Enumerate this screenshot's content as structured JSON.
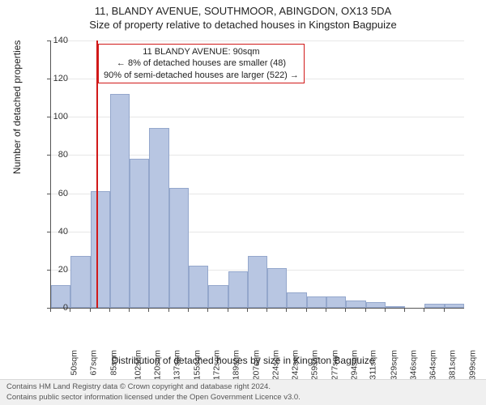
{
  "title_line1": "11, BLANDY AVENUE, SOUTHMOOR, ABINGDON, OX13 5DA",
  "title_line2": "Size of property relative to detached houses in Kingston Bagpuize",
  "xlabel": "Distribution of detached houses by size in Kingston Bagpuize",
  "ylabel": "Number of detached properties",
  "footer_line1": "Contains HM Land Registry data © Crown copyright and database right 2024.",
  "footer_line2": "Contains public sector information licensed under the Open Government Licence v3.0.",
  "annotation": {
    "line1": "11 BLANDY AVENUE: 90sqm",
    "line2": "← 8% of detached houses are smaller (48)",
    "line3": "90% of semi-detached houses are larger (522) →"
  },
  "chart": {
    "type": "histogram",
    "background_color": "#ffffff",
    "grid_color": "#e7e7e7",
    "axis_color": "#555555",
    "bar_fill": "#b8c6e2",
    "bar_border": "#94a7cc",
    "refline_color": "#d11919",
    "refline_x": 90,
    "ylim": [
      0,
      140
    ],
    "ytick_step": 20,
    "x_start": 50,
    "x_step": 17.5,
    "x_count": 21,
    "title_fontsize": 13,
    "label_fontsize": 12,
    "tick_fontsize": 11,
    "x_tick_labels": [
      "50sqm",
      "67sqm",
      "85sqm",
      "102sqm",
      "120sqm",
      "137sqm",
      "155sqm",
      "172sqm",
      "189sqm",
      "207sqm",
      "224sqm",
      "242sqm",
      "259sqm",
      "277sqm",
      "294sqm",
      "311sqm",
      "329sqm",
      "346sqm",
      "364sqm",
      "381sqm",
      "399sqm"
    ],
    "values": [
      12,
      27,
      61,
      112,
      78,
      94,
      63,
      22,
      12,
      19,
      27,
      21,
      8,
      6,
      6,
      4,
      3,
      1,
      0,
      2,
      2
    ]
  }
}
